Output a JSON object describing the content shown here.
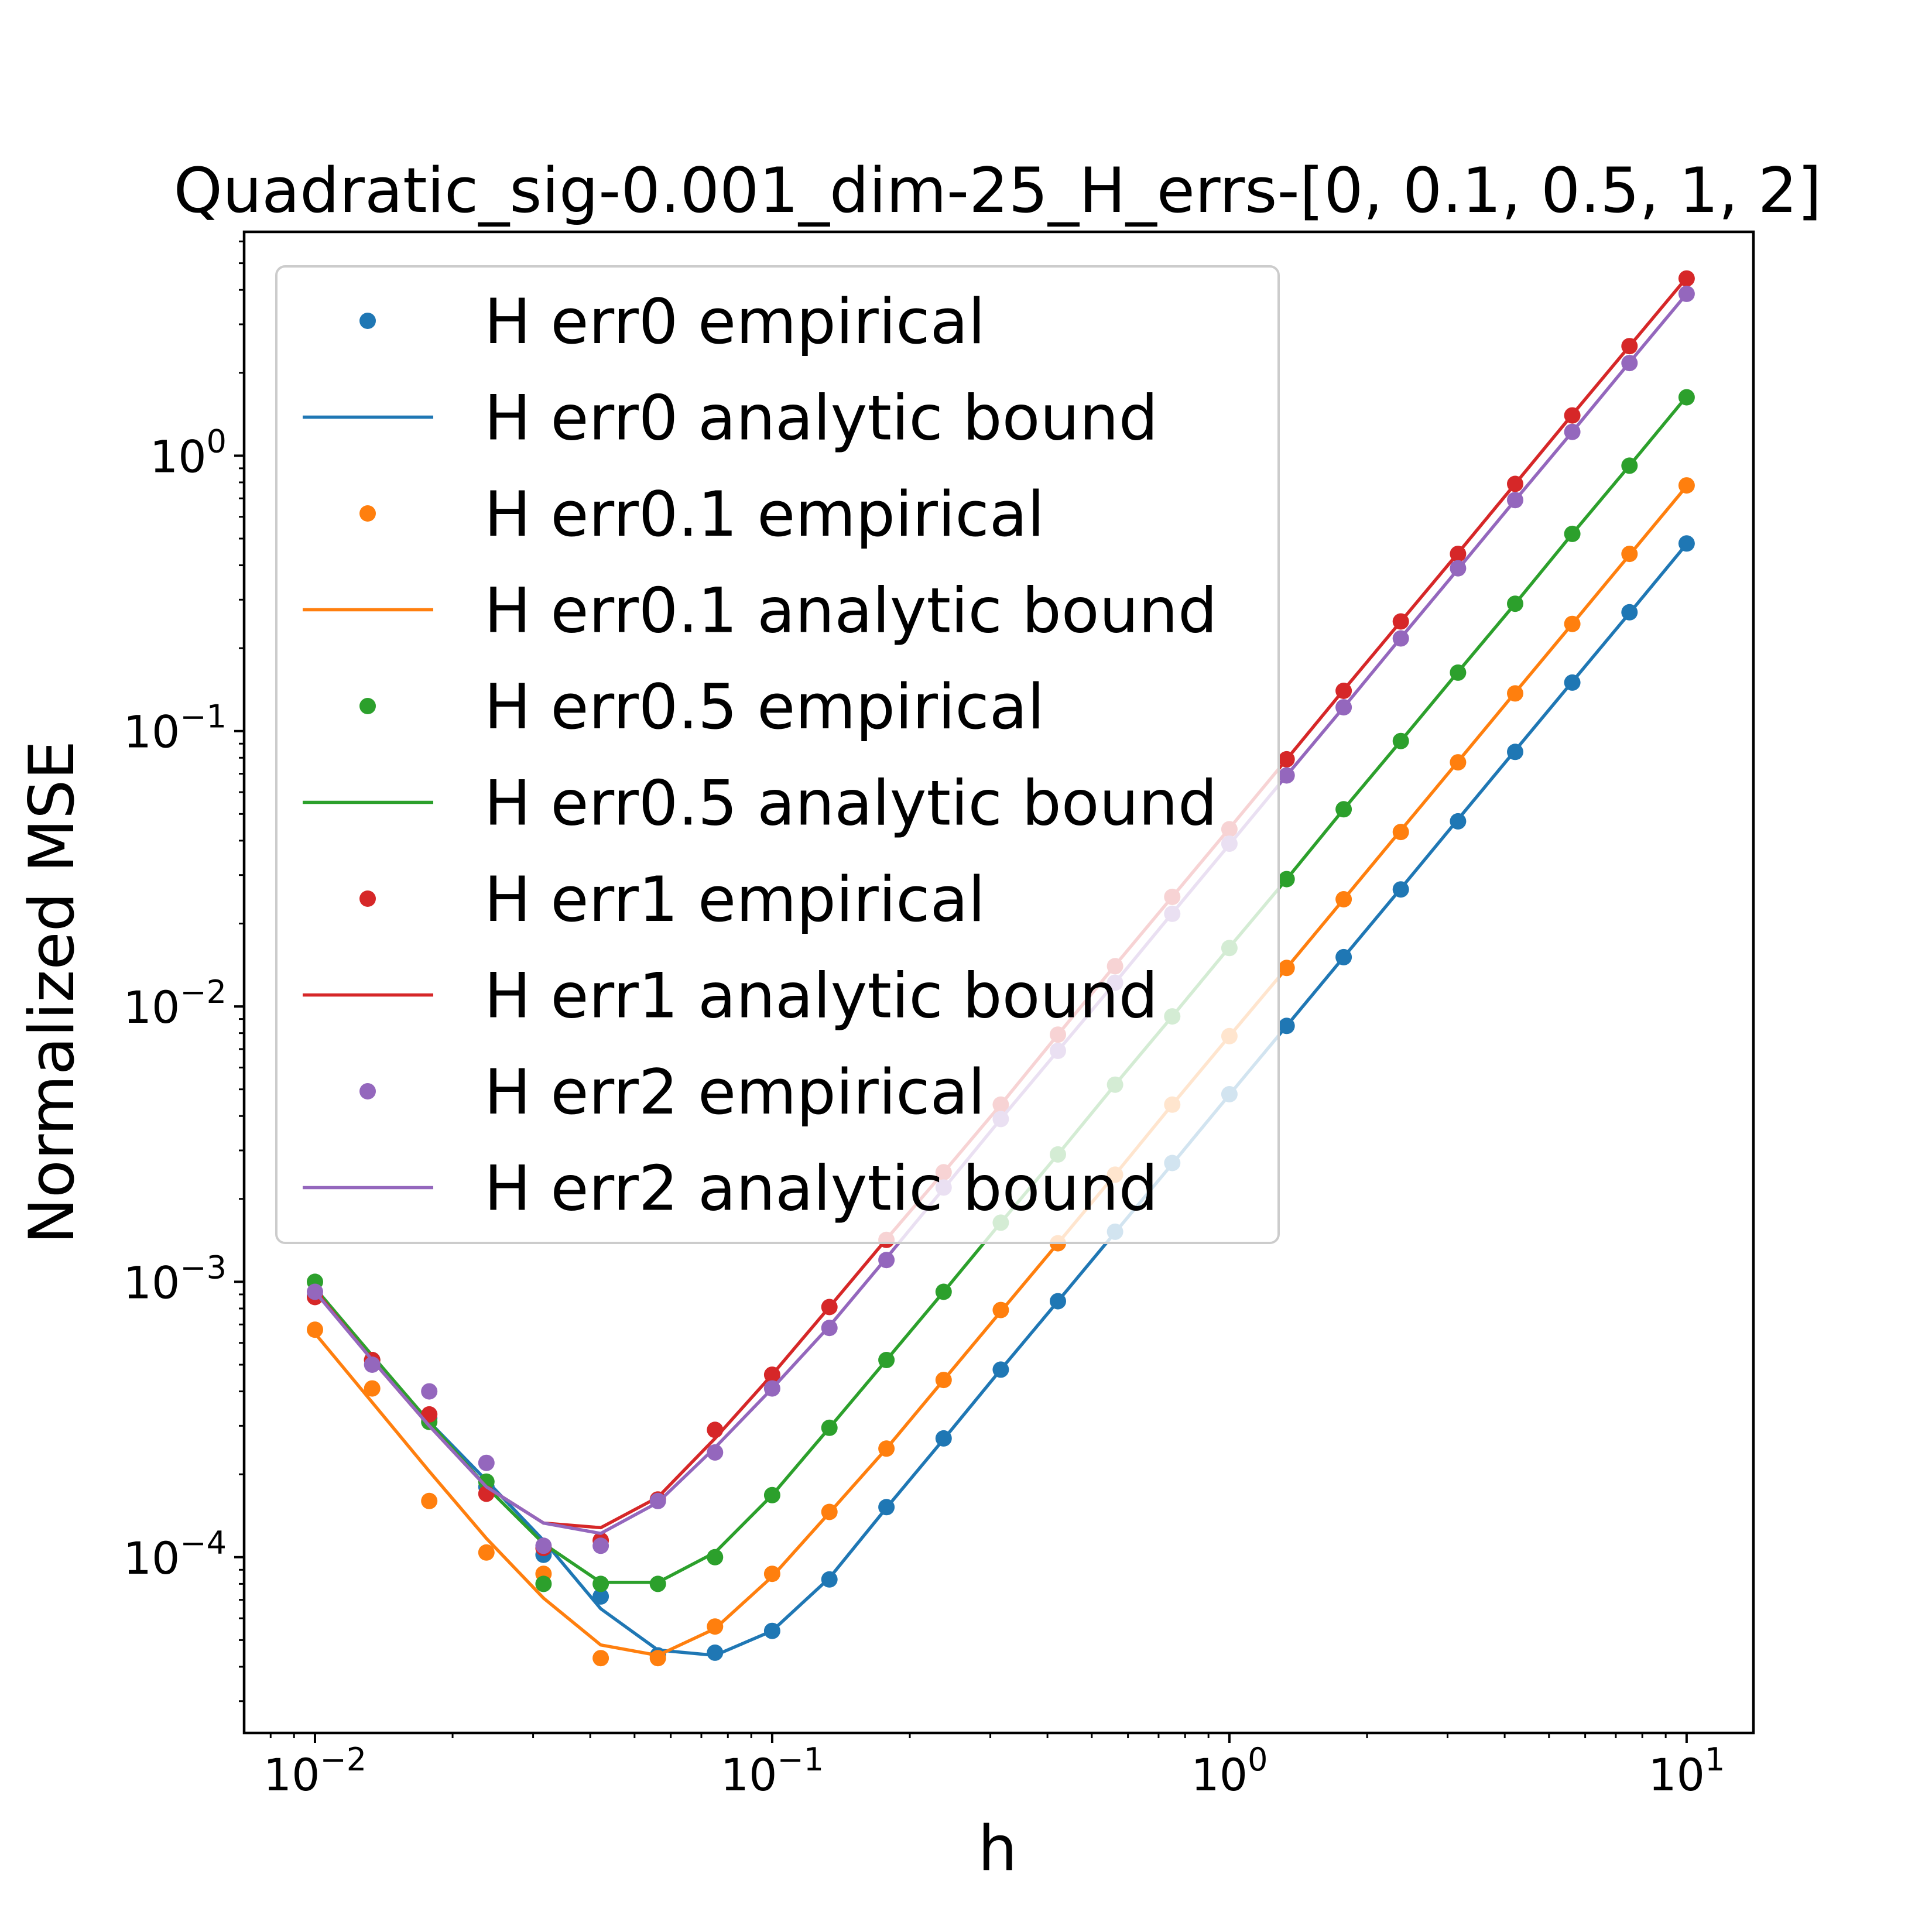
{
  "chart_data": {
    "type": "line",
    "title": "Quadratic_sig-0.001_dim-25_H_errs-[0, 0.1, 0.5, 1, 2]",
    "xlabel": "h",
    "ylabel": "Normalized MSE",
    "xscale": "log",
    "yscale": "log",
    "xlim": [
      0.007,
      14
    ],
    "ylim": [
      2.3e-05,
      6.5
    ],
    "xticks": [
      {
        "value": 0.01,
        "base": "10",
        "exp": "−2"
      },
      {
        "value": 0.1,
        "base": "10",
        "exp": "−1"
      },
      {
        "value": 1,
        "base": "10",
        "exp": "0"
      },
      {
        "value": 10,
        "base": "10",
        "exp": "1"
      }
    ],
    "yticks": [
      {
        "value": 0.0001,
        "base": "10",
        "exp": "−4"
      },
      {
        "value": 0.001,
        "base": "10",
        "exp": "−3"
      },
      {
        "value": 0.01,
        "base": "10",
        "exp": "−2"
      },
      {
        "value": 0.1,
        "base": "10",
        "exp": "−1"
      },
      {
        "value": 1,
        "base": "10",
        "exp": "0"
      }
    ],
    "grid": false,
    "legend_position": "upper-left",
    "x": [
      0.01,
      0.01334,
      0.01778,
      0.02371,
      0.03162,
      0.04217,
      0.05623,
      0.07499,
      0.1,
      0.1334,
      0.1778,
      0.2371,
      0.3162,
      0.4217,
      0.5623,
      0.7499,
      1.0,
      1.334,
      1.778,
      2.371,
      3.162,
      4.217,
      5.623,
      7.499,
      10.0
    ],
    "series": [
      {
        "name": "H err0",
        "color": "#1f77b4",
        "empirical_label": "H err0 empirical",
        "bound_label": "H err0 analytic bound",
        "empirical": [
          0.00089,
          0.00052,
          0.00032,
          0.00018,
          0.000102,
          7.2e-05,
          4.4e-05,
          4.5e-05,
          5.4e-05,
          8.3e-05,
          0.000152,
          0.00027,
          0.00048,
          0.00085,
          0.00152,
          0.0027,
          0.0048,
          0.0085,
          0.0151,
          0.0266,
          0.047,
          0.084,
          0.15,
          0.27,
          0.48
        ],
        "bound": [
          0.00095,
          0.00053,
          0.00031,
          0.00019,
          0.000115,
          6.5e-05,
          4.6e-05,
          4.4e-05,
          5.4e-05,
          8.4e-05,
          0.000151,
          0.000268,
          0.00048,
          0.00085,
          0.00151,
          0.00268,
          0.00478,
          0.0085,
          0.0151,
          0.0268,
          0.0478,
          0.085,
          0.151,
          0.268,
          0.478
        ]
      },
      {
        "name": "H err0.1",
        "color": "#ff7f0e",
        "empirical_label": "H err0.1 empirical",
        "bound_label": "H err0.1 analytic bound",
        "empirical": [
          0.00067,
          0.00041,
          0.00016,
          0.000104,
          8.7e-05,
          4.3e-05,
          4.3e-05,
          5.6e-05,
          8.7e-05,
          0.000146,
          0.000248,
          0.00044,
          0.00079,
          0.00138,
          0.00245,
          0.0044,
          0.0078,
          0.0138,
          0.0245,
          0.043,
          0.077,
          0.137,
          0.245,
          0.44,
          0.78
        ],
        "bound": [
          0.00065,
          0.000365,
          0.000205,
          0.000117,
          7.1e-05,
          4.8e-05,
          4.4e-05,
          5.5e-05,
          8.5e-05,
          0.000145,
          0.000248,
          0.00044,
          0.00078,
          0.00138,
          0.00245,
          0.0044,
          0.0078,
          0.0138,
          0.0245,
          0.0436,
          0.0775,
          0.138,
          0.245,
          0.436,
          0.775
        ]
      },
      {
        "name": "H err0.5",
        "color": "#2ca02c",
        "empirical_label": "H err0.5 empirical",
        "bound_label": "H err0.5 analytic bound",
        "empirical": [
          0.001,
          0.00052,
          0.00031,
          0.000188,
          8e-05,
          8e-05,
          8e-05,
          0.0001,
          0.000168,
          0.000295,
          0.00052,
          0.00092,
          0.00164,
          0.0029,
          0.0052,
          0.0092,
          0.0163,
          0.029,
          0.052,
          0.092,
          0.163,
          0.29,
          0.52,
          0.92,
          1.63
        ],
        "bound": [
          0.00095,
          0.00054,
          0.00031,
          0.00018,
          0.000112,
          8.1e-05,
          8.1e-05,
          0.000104,
          0.000168,
          0.000295,
          0.00052,
          0.00092,
          0.00164,
          0.0029,
          0.0052,
          0.0092,
          0.0164,
          0.029,
          0.052,
          0.092,
          0.164,
          0.29,
          0.52,
          0.92,
          1.64
        ]
      },
      {
        "name": "H err1",
        "color": "#d62728",
        "empirical_label": "H err1 empirical",
        "bound_label": "H err1 analytic bound",
        "empirical": [
          0.00088,
          0.00052,
          0.00033,
          0.00017,
          0.000108,
          0.000115,
          0.000162,
          0.00029,
          0.00046,
          0.00081,
          0.00142,
          0.0025,
          0.0044,
          0.0079,
          0.014,
          0.025,
          0.044,
          0.079,
          0.14,
          0.25,
          0.44,
          0.79,
          1.4,
          2.5,
          4.4
        ],
        "bound": [
          0.00093,
          0.00052,
          0.0003,
          0.00018,
          0.000133,
          0.000128,
          0.000165,
          0.00027,
          0.00046,
          0.00081,
          0.00143,
          0.0025,
          0.0044,
          0.0079,
          0.0141,
          0.025,
          0.0443,
          0.079,
          0.141,
          0.25,
          0.443,
          0.79,
          1.41,
          2.5,
          4.43
        ]
      },
      {
        "name": "H err2",
        "color": "#9467bd",
        "empirical_label": "H err2 empirical",
        "bound_label": "H err2 analytic bound",
        "empirical": [
          0.00092,
          0.0005,
          0.0004,
          0.00022,
          0.00011,
          0.00011,
          0.00016,
          0.00024,
          0.00041,
          0.00068,
          0.0012,
          0.0022,
          0.0039,
          0.0069,
          0.0122,
          0.0217,
          0.039,
          0.069,
          0.122,
          0.217,
          0.39,
          0.69,
          1.22,
          2.17,
          3.87
        ],
        "bound": [
          0.00092,
          0.00052,
          0.0003,
          0.00018,
          0.000133,
          0.000122,
          0.000158,
          0.00025,
          0.00041,
          0.00069,
          0.00122,
          0.00218,
          0.0039,
          0.0069,
          0.0122,
          0.0218,
          0.0387,
          0.069,
          0.122,
          0.218,
          0.387,
          0.69,
          1.22,
          2.18,
          3.87
        ]
      }
    ]
  }
}
